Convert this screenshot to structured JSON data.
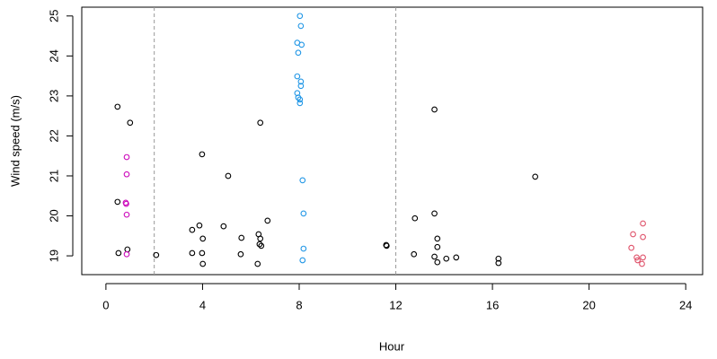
{
  "chart_data": {
    "type": "scatter",
    "xlabel": "Hour",
    "ylabel": "Wind speed (m/s)",
    "xlim": [
      -1,
      24.7
    ],
    "ylim": [
      18.53,
      25.22
    ],
    "xticks": [
      0,
      4,
      8,
      12,
      16,
      20,
      24
    ],
    "yticks": [
      19,
      20,
      21,
      22,
      23,
      24,
      25
    ],
    "vlines": [
      2,
      12
    ],
    "vline_color": "#999999",
    "series": [
      {
        "color": "#000000",
        "x": [
          0.48,
          0.48,
          0.52,
          0.89,
          1.0,
          2.08,
          3.98,
          3.57,
          3.87,
          4.01,
          3.57,
          3.98,
          4.01,
          5.06,
          4.87,
          5.61,
          5.58,
          6.32,
          6.39,
          6.36,
          6.43,
          6.28,
          6.39,
          6.69,
          11.6,
          11.62,
          12.79,
          12.75,
          13.6,
          13.6,
          13.72,
          13.72,
          13.6,
          13.72,
          14.09,
          14.5,
          16.25,
          16.25,
          17.77
        ],
        "values": [
          22.73,
          20.35,
          19.07,
          19.16,
          22.33,
          19.02,
          21.54,
          19.65,
          19.76,
          19.43,
          19.07,
          19.07,
          18.8,
          21.0,
          19.74,
          19.45,
          19.04,
          19.54,
          19.43,
          19.29,
          19.25,
          18.8,
          22.33,
          19.88,
          19.27,
          19.25,
          19.94,
          19.04,
          22.66,
          20.06,
          19.43,
          19.22,
          18.98,
          18.84,
          18.93,
          18.96,
          18.93,
          18.82,
          20.98
        ]
      },
      {
        "color": "#CD0BBC",
        "x": [
          0.86,
          0.86,
          0.82,
          0.84,
          0.86,
          0.86
        ],
        "values": [
          21.47,
          21.04,
          20.33,
          20.3,
          20.03,
          19.04
        ]
      },
      {
        "color": "#2297E6",
        "x": [
          8.03,
          8.07,
          7.92,
          8.1,
          7.96,
          7.92,
          8.07,
          8.07,
          7.92,
          7.96,
          8.03,
          8.03,
          8.14,
          8.18,
          8.18,
          8.14
        ],
        "values": [
          25.0,
          24.75,
          24.33,
          24.28,
          24.08,
          23.49,
          23.36,
          23.25,
          23.07,
          22.96,
          22.91,
          22.82,
          20.89,
          20.06,
          19.18,
          18.89
        ]
      },
      {
        "color": "#DF536B",
        "x": [
          22.23,
          21.82,
          22.23,
          21.75,
          21.97,
          22.01,
          22.23,
          22.19
        ],
        "values": [
          19.81,
          19.54,
          19.47,
          19.2,
          18.96,
          18.89,
          18.96,
          18.8
        ]
      }
    ]
  }
}
